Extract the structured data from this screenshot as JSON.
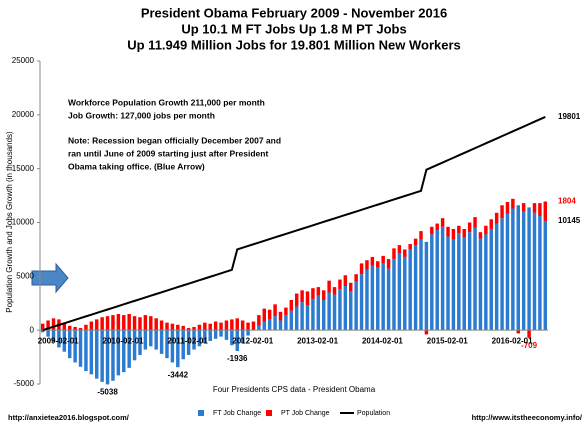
{
  "chart_data": {
    "type": "bar",
    "title": [
      "President Obama February 2009 - November 2016",
      "Up 10.1 M FT Jobs Up 1.8 M PT Jobs",
      "Up 11.949 Million Jobs for 19.801 Million New Workers"
    ],
    "y_label": "Population Growth and Jobs Growth (in thousands)",
    "x_label": "Four Presidents CPS data - President Obama",
    "annotations": [
      "Workforce Population Growth  211,000 per month",
      "Job Growth:  127,000 jobs per month",
      "Note: Recession began officially December 2007 and",
      "ran until June of 2009 starting just after President",
      "Obama taking office. (Blue Arrow)"
    ],
    "footer_left": "http://anxietea2016.blogspot.com/",
    "footer_right": "http://www.itstheeconomy.info/",
    "ylim": [
      -5000,
      25000
    ],
    "yticks": [
      -5000,
      0,
      5000,
      10000,
      15000,
      20000,
      25000
    ],
    "categories": [
      "2009-02-01",
      null,
      null,
      null,
      null,
      null,
      null,
      null,
      null,
      null,
      null,
      null,
      "2010-02-01",
      null,
      null,
      null,
      null,
      null,
      null,
      null,
      null,
      null,
      null,
      null,
      "2011-02-01",
      null,
      null,
      null,
      null,
      null,
      null,
      null,
      null,
      null,
      null,
      null,
      "2012-02-01",
      null,
      null,
      null,
      null,
      null,
      null,
      null,
      null,
      null,
      null,
      null,
      "2013-02-01",
      null,
      null,
      null,
      null,
      null,
      null,
      null,
      null,
      null,
      null,
      null,
      "2014-02-01",
      null,
      null,
      null,
      null,
      null,
      null,
      null,
      null,
      null,
      null,
      null,
      "2015-02-01",
      null,
      null,
      null,
      null,
      null,
      null,
      null,
      null,
      null,
      null,
      null,
      "2016-02-01",
      null,
      null,
      null,
      null,
      null,
      null,
      null,
      null,
      null
    ],
    "series": [
      {
        "name": "FT Job Change",
        "color": "#2b7bd0",
        "stack": true,
        "values": [
          -200,
          -600,
          -1100,
          -1600,
          -2000,
          -2600,
          -3000,
          -3400,
          -3800,
          -4100,
          -4500,
          -4800,
          -5038,
          -4700,
          -4200,
          -3900,
          -3500,
          -2800,
          -2300,
          -1800,
          -1500,
          -1800,
          -2200,
          -2600,
          -3000,
          -3442,
          -2700,
          -2300,
          -1800,
          -1500,
          -1200,
          -1000,
          -800,
          -600,
          -900,
          -1400,
          -1936,
          -1200,
          -500,
          0,
          400,
          800,
          1000,
          1300,
          900,
          1400,
          1800,
          2200,
          2600,
          2300,
          2900,
          3200,
          2800,
          3500,
          3300,
          3800,
          4100,
          3600,
          4500,
          5200,
          5600,
          6000,
          5800,
          6200,
          5700,
          6600,
          7100,
          6800,
          7500,
          7900,
          8400,
          8200,
          8900,
          9300,
          9600,
          8700,
          8400,
          9000,
          8600,
          9100,
          9500,
          8500,
          8900,
          9400,
          9900,
          10400,
          10800,
          11300,
          11600,
          11000,
          11400,
          10900,
          10600,
          10145
        ],
        "value_labels": [
          null,
          null,
          null,
          null,
          null,
          null,
          null,
          null,
          null,
          null,
          null,
          null,
          "-5038",
          null,
          null,
          null,
          null,
          null,
          null,
          null,
          null,
          null,
          null,
          null,
          null,
          "-3442",
          null,
          null,
          null,
          null,
          null,
          null,
          null,
          null,
          null,
          null,
          "-1936",
          null,
          null,
          null,
          null,
          null,
          null,
          null,
          null,
          null,
          null,
          null,
          null,
          null,
          null,
          null,
          null,
          null,
          null,
          null,
          null,
          null,
          null,
          null,
          null,
          null,
          null,
          null,
          null,
          null,
          null,
          null,
          null,
          null,
          null,
          null,
          null,
          null,
          null,
          null,
          null,
          null,
          null,
          null,
          null,
          null,
          null,
          null,
          null,
          null,
          null,
          null,
          null,
          null,
          null,
          null,
          null,
          "10145"
        ]
      },
      {
        "name": "PT Job Change",
        "color": "#ff0000",
        "stack": true,
        "values": [
          600,
          900,
          1100,
          1000,
          700,
          400,
          300,
          200,
          500,
          800,
          1000,
          1200,
          1300,
          1400,
          1500,
          1400,
          1500,
          1300,
          1200,
          1400,
          1300,
          1100,
          900,
          700,
          600,
          500,
          400,
          200,
          300,
          500,
          700,
          600,
          800,
          700,
          900,
          1000,
          1100,
          900,
          700,
          800,
          1000,
          1200,
          900,
          1100,
          800,
          700,
          1000,
          1200,
          1100,
          1300,
          1000,
          800,
          900,
          1100,
          700,
          900,
          1000,
          800,
          700,
          1000,
          900,
          800,
          600,
          700,
          900,
          1000,
          800,
          700,
          500,
          600,
          800,
          -400,
          700,
          600,
          800,
          900,
          1000,
          700,
          800,
          900,
          1000,
          600,
          800,
          900,
          1000,
          1200,
          1100,
          900,
          -300,
          800,
          -709,
          900,
          1200,
          1804
        ],
        "value_labels": [
          null,
          null,
          null,
          null,
          null,
          null,
          null,
          null,
          null,
          null,
          null,
          null,
          null,
          null,
          null,
          null,
          null,
          null,
          null,
          null,
          null,
          null,
          null,
          null,
          null,
          null,
          null,
          null,
          null,
          null,
          null,
          null,
          null,
          null,
          null,
          null,
          null,
          null,
          null,
          null,
          null,
          null,
          null,
          null,
          null,
          null,
          null,
          null,
          null,
          null,
          null,
          null,
          null,
          null,
          null,
          null,
          null,
          null,
          null,
          null,
          null,
          null,
          null,
          null,
          null,
          null,
          null,
          null,
          null,
          null,
          null,
          null,
          null,
          null,
          null,
          null,
          null,
          null,
          null,
          null,
          null,
          null,
          null,
          null,
          null,
          null,
          null,
          null,
          null,
          null,
          "-709",
          null,
          null,
          "1804"
        ]
      },
      {
        "name": "Population",
        "color": "#000000",
        "kind": "line",
        "values": [
          0,
          160,
          320,
          480,
          640,
          800,
          960,
          1120,
          1280,
          1440,
          1600,
          1760,
          1920,
          2080,
          2240,
          2400,
          2560,
          2720,
          2880,
          3040,
          3200,
          3360,
          3520,
          3680,
          3840,
          4000,
          4160,
          4320,
          4480,
          4640,
          4800,
          4960,
          5120,
          5280,
          5440,
          5600,
          7500,
          7660,
          7820,
          7980,
          8140,
          8300,
          8460,
          8620,
          8780,
          8940,
          9100,
          9260,
          9420,
          9580,
          9740,
          9900,
          10060,
          10220,
          10380,
          10540,
          10700,
          10860,
          11020,
          11180,
          11340,
          11500,
          11660,
          11820,
          11980,
          12140,
          12300,
          12460,
          12620,
          12780,
          12940,
          14900,
          15123,
          15346,
          15569,
          15792,
          16015,
          16238,
          16461,
          16684,
          16907,
          17130,
          17353,
          17576,
          17799,
          18022,
          18245,
          18468,
          18691,
          18914,
          19137,
          19360,
          19583,
          19801
        ],
        "value_labels": [
          null,
          null,
          null,
          null,
          null,
          null,
          null,
          null,
          null,
          null,
          null,
          null,
          null,
          null,
          null,
          null,
          null,
          null,
          null,
          null,
          null,
          null,
          null,
          null,
          null,
          null,
          null,
          null,
          null,
          null,
          null,
          null,
          null,
          null,
          null,
          null,
          null,
          null,
          null,
          null,
          null,
          null,
          null,
          null,
          null,
          null,
          null,
          null,
          null,
          null,
          null,
          null,
          null,
          null,
          null,
          null,
          null,
          null,
          null,
          null,
          null,
          null,
          null,
          null,
          null,
          null,
          null,
          null,
          null,
          null,
          null,
          null,
          null,
          null,
          null,
          null,
          null,
          null,
          null,
          null,
          null,
          null,
          null,
          null,
          null,
          null,
          null,
          null,
          null,
          null,
          null,
          null,
          null,
          "19801"
        ]
      }
    ]
  }
}
